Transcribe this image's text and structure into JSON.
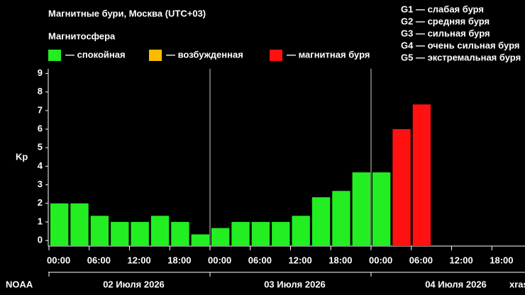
{
  "chart_data": {
    "type": "bar",
    "title": "Магнитные бури, Москва (UTC+03)",
    "subtitle": "Магнитосфера",
    "legend": [
      {
        "name": "— спокойная",
        "color": "#22ee22"
      },
      {
        "name": "— возбужденная",
        "color": "#ffbb00"
      },
      {
        "name": "— магнитная буря",
        "color": "#ff1111"
      }
    ],
    "scale_notes": [
      "G1 — слабая буря",
      "G2 — средняя буря",
      "G3 — сильная буря",
      "G4 — очень сильная буря",
      "G5 — экстремальная буря"
    ],
    "y_label": "Kp",
    "ylim": [
      -0.3,
      9.25
    ],
    "yticks": [
      0,
      1,
      2,
      3,
      4,
      5,
      6,
      7,
      8,
      9
    ],
    "xticks": [
      "00:00",
      "06:00",
      "12:00",
      "18:00",
      "00:00",
      "06:00",
      "12:00",
      "18:00",
      "00:00",
      "06:00",
      "12:00",
      "18:00"
    ],
    "days": [
      "02 Июля 2026",
      "03 Июля 2026",
      "04 Июля 2026"
    ],
    "values": [
      2,
      2,
      1.33,
      1,
      1,
      1.33,
      1,
      0.33,
      0.67,
      1,
      1,
      1,
      1.33,
      2.33,
      2.67,
      3.67,
      3.67,
      6,
      7.33,
      null,
      null,
      null,
      null,
      null
    ],
    "colors": [
      "#22ee22",
      "#22ee22",
      "#22ee22",
      "#22ee22",
      "#22ee22",
      "#22ee22",
      "#22ee22",
      "#22ee22",
      "#22ee22",
      "#22ee22",
      "#22ee22",
      "#22ee22",
      "#22ee22",
      "#22ee22",
      "#22ee22",
      "#22ee22",
      "#22ee22",
      "#ff1111",
      "#ff1111",
      null,
      null,
      null,
      null,
      null
    ],
    "source": "NOAA",
    "watermark": "xras.ru"
  }
}
